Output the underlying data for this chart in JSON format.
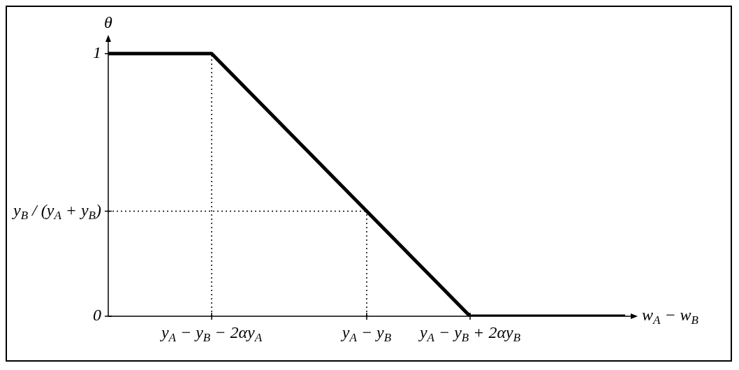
{
  "chart_data": {
    "type": "line",
    "xlabel": "w$_{A}$ − w$_{B}$",
    "ylabel": "θ",
    "ylim": [
      0,
      1.05
    ],
    "categories": [
      null,
      null,
      "y$_{A}$ − y$_{B}$ − 2αy$_{A}$",
      null,
      null,
      "y$_{A}$ − y$_{B}$",
      null,
      "y$_{A}$ − y$_{B}$ + 2αy$_{B}$",
      null,
      null,
      null
    ],
    "yticks": [
      0,
      {
        "value": 0.4,
        "label": "y$_{B}$ / (y$_{A}$ + y$_{B}$)"
      },
      1
    ],
    "marker": "none",
    "line_style": "solid",
    "series": [
      {
        "color": "#000000",
        "values": [
          1,
          1,
          1,
          0.8,
          0.6,
          0.4,
          0.2,
          0,
          0,
          0,
          0
        ]
      }
    ],
    "ref_lines": [
      {
        "axis": "x",
        "value": "y$_{A}$ − y$_{B}$ − 2αy$_{A}$",
        "color": "#000000",
        "line_style": "dotted"
      },
      {
        "axis": "x",
        "value": "y$_{A}$ − y$_{B}$",
        "color": "#000000",
        "line_style": "dotted"
      },
      {
        "axis": "y",
        "value": 0.4,
        "color": "#000000",
        "line_style": "dotted"
      }
    ]
  }
}
